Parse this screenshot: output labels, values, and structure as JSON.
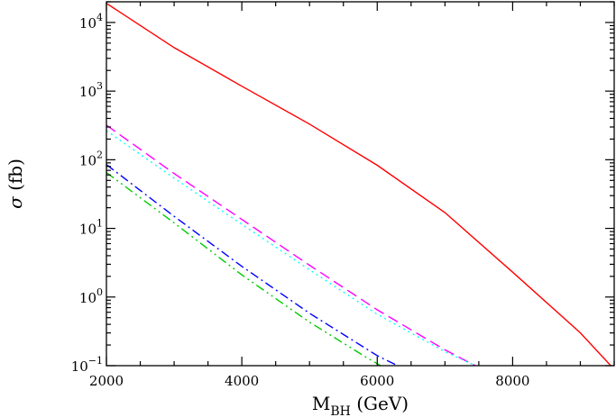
{
  "chart_data": {
    "type": "line",
    "xlabel": {
      "main": "M",
      "sub": "BH",
      "unit": " (GeV)"
    },
    "ylabel": {
      "symbol": "σ",
      "unit": " (fb)"
    },
    "xlim": [
      2000,
      9500
    ],
    "ylim": [
      0.1,
      20000
    ],
    "y_scale": "log",
    "grid": false,
    "x_ticks": [
      {
        "value": 2000,
        "label": "2000"
      },
      {
        "value": 4000,
        "label": "4000"
      },
      {
        "value": 6000,
        "label": "6000"
      },
      {
        "value": 8000,
        "label": "8000"
      }
    ],
    "y_ticks": [
      {
        "value": 0.1,
        "base": "10",
        "exp": "−1"
      },
      {
        "value": 1,
        "base": "10",
        "exp": "0"
      },
      {
        "value": 10,
        "base": "10",
        "exp": "1"
      },
      {
        "value": 100,
        "base": "10",
        "exp": "2"
      },
      {
        "value": 1000,
        "base": "10",
        "exp": "3"
      },
      {
        "value": 10000,
        "base": "10",
        "exp": "4"
      }
    ],
    "series": [
      {
        "color": "#ff0000",
        "dash": "",
        "x": [
          2000,
          3000,
          4000,
          5000,
          6000,
          7000,
          8000,
          9000,
          9450
        ],
        "y": [
          19000,
          4300,
          1180,
          330,
          83,
          17,
          2.3,
          0.3,
          0.1
        ]
      },
      {
        "color": "#ff00ff",
        "dash": "12,6",
        "x": [
          2000,
          3000,
          4000,
          5000,
          6000,
          7000,
          7450
        ],
        "y": [
          320,
          63,
          13.5,
          2.9,
          0.65,
          0.17,
          0.1
        ]
      },
      {
        "color": "#00ffff",
        "dash": "2,4",
        "x": [
          2000,
          3000,
          4000,
          5000,
          6000,
          7000,
          7450
        ],
        "y": [
          265,
          54,
          11.5,
          2.5,
          0.56,
          0.16,
          0.1
        ]
      },
      {
        "color": "#0000ff",
        "dash": "10,4,2,4",
        "x": [
          2000,
          3000,
          4000,
          5000,
          6000,
          6300
        ],
        "y": [
          85,
          15,
          2.8,
          0.58,
          0.14,
          0.1
        ]
      },
      {
        "color": "#00cc00",
        "dash": "10,4,2,4,2,4",
        "x": [
          2000,
          3000,
          4000,
          5000,
          5850,
          6050
        ],
        "y": [
          65,
          12,
          2.1,
          0.43,
          0.13,
          0.1
        ]
      }
    ]
  }
}
